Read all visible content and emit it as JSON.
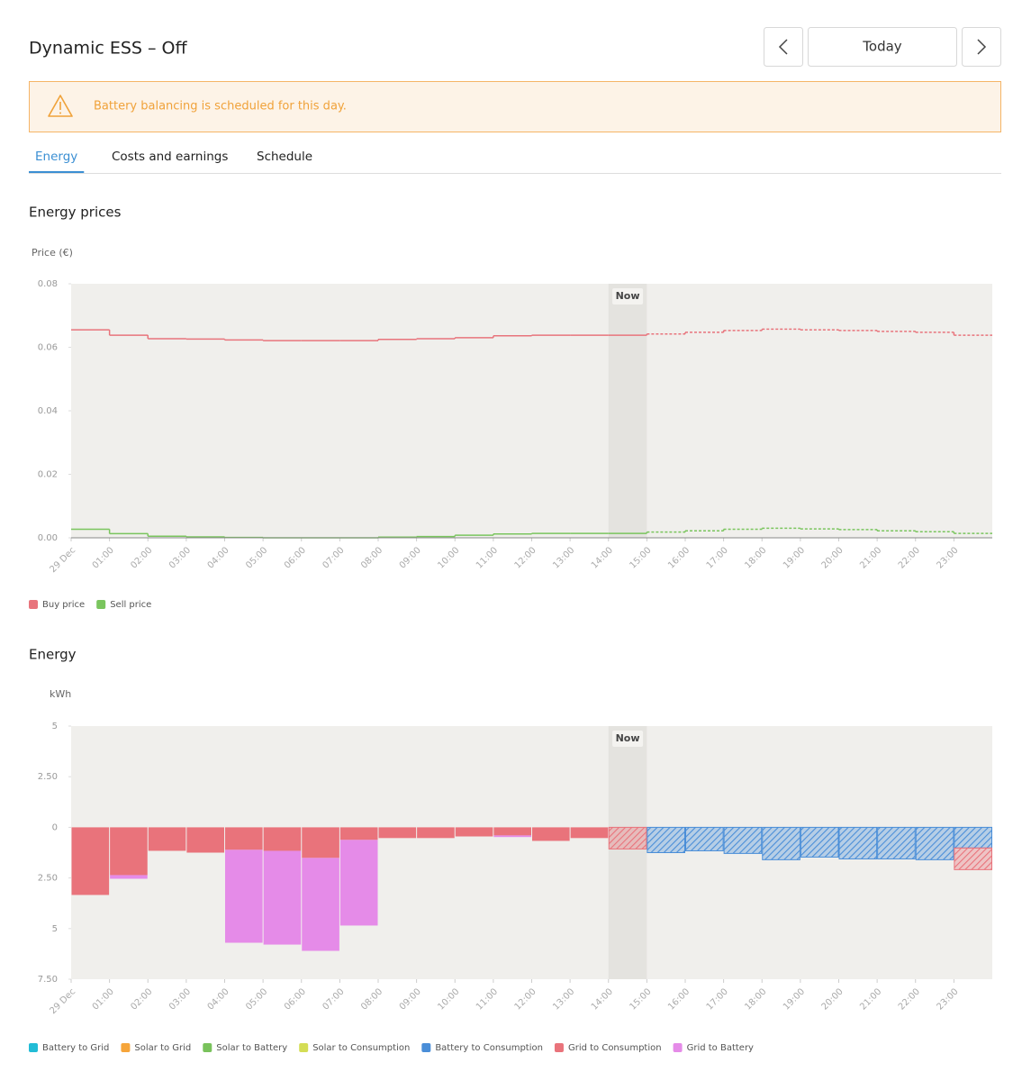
{
  "header": {
    "title": "Dynamic ESS – Off",
    "today": "Today"
  },
  "alert": "Battery balancing is scheduled for this day.",
  "tabs": {
    "items": [
      "Energy",
      "Costs and earnings",
      "Schedule"
    ],
    "active": 0
  },
  "chart_data": [
    {
      "type": "line",
      "title": "Energy prices",
      "y_label": "Price (€)",
      "categories": [
        "29 Dec",
        "01:00",
        "02:00",
        "03:00",
        "04:00",
        "05:00",
        "06:00",
        "07:00",
        "08:00",
        "09:00",
        "10:00",
        "11:00",
        "12:00",
        "13:00",
        "14:00",
        "15:00",
        "16:00",
        "17:00",
        "18:00",
        "19:00",
        "20:00",
        "21:00",
        "22:00",
        "23:00"
      ],
      "series": [
        {
          "name": "Buy price",
          "color": "#e8747c",
          "values": [
            0.0655,
            0.0638,
            0.0627,
            0.0626,
            0.0623,
            0.0621,
            0.0621,
            0.0621,
            0.0625,
            0.0627,
            0.063,
            0.0636,
            0.0638,
            0.0638,
            0.0638,
            0.0642,
            0.0647,
            0.0653,
            0.0657,
            0.0655,
            0.0653,
            0.065,
            0.0647,
            0.0638
          ]
        },
        {
          "name": "Sell price",
          "color": "#7ac55e",
          "values": [
            0.0027,
            0.0013,
            0.0005,
            0.0003,
            0.0001,
            0,
            0,
            0,
            0.0002,
            0.0004,
            0.0008,
            0.0012,
            0.0014,
            0.0014,
            0.0014,
            0.0018,
            0.0022,
            0.0027,
            0.003,
            0.0028,
            0.0026,
            0.0022,
            0.0019,
            0.0014
          ]
        }
      ],
      "ylim": [
        0,
        0.08
      ],
      "yticks": [
        {
          "value": 0,
          "label": "0.00"
        },
        0.02,
        0.04,
        0.06,
        0.08
      ],
      "now": {
        "label": "Now",
        "index": 14
      }
    },
    {
      "type": "bar",
      "stacked": true,
      "title": "Energy",
      "y_label": "kWh",
      "categories": [
        "29 Dec",
        "01:00",
        "02:00",
        "03:00",
        "04:00",
        "05:00",
        "06:00",
        "07:00",
        "08:00",
        "09:00",
        "10:00",
        "11:00",
        "12:00",
        "13:00",
        "14:00",
        "15:00",
        "16:00",
        "17:00",
        "18:00",
        "19:00",
        "20:00",
        "21:00",
        "22:00",
        "23:00"
      ],
      "series": [
        {
          "name": "Battery to Grid",
          "color": "#22bcd6",
          "values": [
            0,
            0,
            0,
            0,
            0,
            0,
            0,
            0,
            0,
            0,
            0,
            0,
            0,
            0,
            0,
            0,
            0,
            0,
            0,
            0,
            0,
            0,
            0,
            0
          ]
        },
        {
          "name": "Solar to Grid",
          "color": "#f6a53a",
          "values": [
            0,
            0,
            0,
            0,
            0,
            0,
            0,
            0,
            0,
            0,
            0,
            0,
            0,
            0,
            0,
            0,
            0,
            0,
            0,
            0,
            0,
            0,
            0,
            0
          ]
        },
        {
          "name": "Solar to Battery",
          "color": "#79c25c",
          "values": [
            0,
            0,
            0,
            0,
            0,
            0,
            0,
            0,
            0,
            0,
            0,
            0,
            0,
            0,
            0,
            0,
            0,
            0,
            0,
            0,
            0,
            0,
            0,
            0
          ]
        },
        {
          "name": "Solar to Consumption",
          "color": "#d4dd55",
          "values": [
            0,
            0,
            0,
            0,
            0,
            0,
            0,
            0,
            0,
            0,
            0,
            0,
            0,
            0,
            0,
            0,
            0,
            0,
            0,
            0,
            0,
            0,
            0,
            0
          ]
        },
        {
          "name": "Battery to Consumption",
          "color": "#4a8ed8",
          "values": [
            0,
            0,
            0,
            0,
            0,
            0,
            0,
            0,
            0,
            0,
            0,
            0,
            0,
            0,
            0,
            -1.25,
            -1.16,
            -1.29,
            -1.6,
            -1.47,
            -1.56,
            -1.56,
            -1.6,
            -1.02
          ]
        },
        {
          "name": "Grid to Consumption",
          "color": "#e9737b",
          "values": [
            -3.34,
            -2.36,
            -1.16,
            -1.25,
            -1.11,
            -1.16,
            -1.51,
            -0.62,
            -0.53,
            -0.53,
            -0.45,
            -0.4,
            -0.67,
            -0.53,
            -1.07,
            0,
            0,
            0,
            0,
            0,
            0,
            0,
            0,
            -1.07
          ]
        },
        {
          "name": "Grid to Battery",
          "color": "#e58be8",
          "values": [
            0,
            -0.18,
            0,
            0,
            -4.59,
            -4.63,
            -4.59,
            -4.23,
            0,
            0,
            0,
            -0.08,
            0,
            0,
            0,
            0,
            0,
            0,
            0,
            0,
            0,
            0,
            0,
            0
          ]
        }
      ],
      "ylim": [
        -7.5,
        5
      ],
      "yticks": [
        5,
        {
          "value": 2.5,
          "label": "2.50"
        },
        0,
        {
          "value": -2.5,
          "label": "2.50"
        },
        {
          "value": -5,
          "label": "5"
        },
        {
          "value": -7.5,
          "label": "7.50"
        }
      ],
      "now": {
        "label": "Now",
        "index": 14
      }
    }
  ]
}
